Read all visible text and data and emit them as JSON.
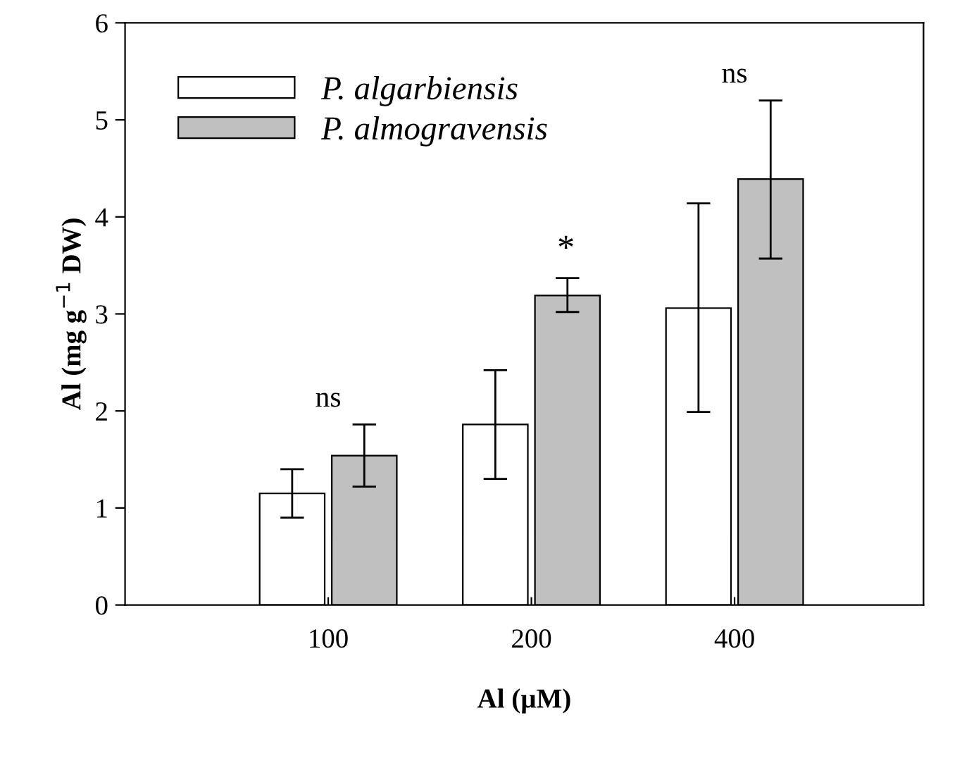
{
  "chart_data": {
    "type": "bar",
    "xlabel": "Al (µM)",
    "ylabel": "Al (mg g$^{−1}$ DW)",
    "categories": [
      "100",
      "200",
      "400"
    ],
    "series": [
      {
        "name": "P. algarbiensis",
        "color": "#ffffff",
        "values": [
          1.15,
          1.86,
          3.06
        ],
        "errors": [
          [
            0.9,
            1.4
          ],
          [
            1.3,
            2.42
          ],
          [
            1.99,
            4.14
          ]
        ]
      },
      {
        "name": "P. almogravensis",
        "color": "#c0c0c0",
        "values": [
          1.54,
          3.19,
          4.39
        ],
        "errors": [
          [
            1.22,
            1.86
          ],
          [
            3.02,
            3.37
          ],
          [
            3.57,
            5.2
          ]
        ]
      }
    ],
    "ylim": [
      0,
      6
    ],
    "yticks": [
      0,
      1,
      2,
      3,
      4,
      5,
      6
    ],
    "grid": false,
    "legend": "top left",
    "annotations": [
      "ns",
      "*",
      "ns"
    ]
  }
}
